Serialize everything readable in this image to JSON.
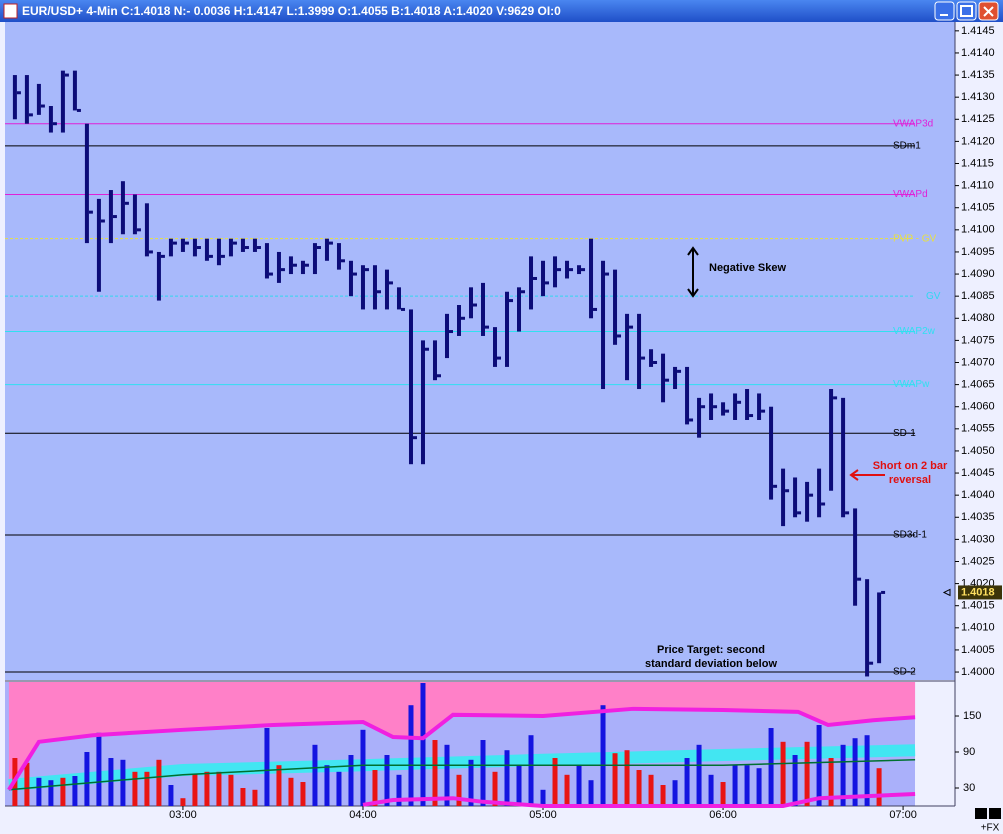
{
  "window": {
    "title": "EUR/USD+ 4-Min C:1.4018 N:- 0.0036 H:1.4147 L:1.3999 O:1.4055 B:1.4018 A:1.4020 V:9629 OI:0",
    "corner_label": "+FX"
  },
  "chart_data": [
    {
      "type": "ohlc",
      "color": "#0c0c78",
      "x": [
        124,
        128,
        132,
        136,
        140,
        144,
        148,
        152,
        156,
        160,
        164,
        168,
        172,
        176,
        180,
        184,
        188,
        192,
        196,
        200,
        204,
        208,
        212,
        216,
        220,
        224,
        228,
        232,
        236,
        240,
        244,
        248,
        252,
        256,
        260,
        264,
        268,
        272,
        276,
        280,
        284,
        288,
        292,
        296,
        300,
        304,
        308,
        312,
        316,
        320,
        324,
        328,
        332,
        336,
        340,
        344,
        348,
        352,
        356,
        360,
        364,
        368,
        372,
        376,
        380,
        384,
        388,
        392,
        396,
        400,
        404,
        408,
        412
      ],
      "high": [
        1.4135,
        1.4135,
        1.4133,
        1.4128,
        1.4136,
        1.4136,
        1.4124,
        1.4107,
        1.4109,
        1.4111,
        1.4108,
        1.4106,
        1.4095,
        1.4098,
        1.4098,
        1.4098,
        1.4098,
        1.4098,
        1.4098,
        1.4098,
        1.4098,
        1.4097,
        1.4095,
        1.4094,
        1.4093,
        1.4097,
        1.4098,
        1.4097,
        1.4093,
        1.4092,
        1.4092,
        1.4091,
        1.4087,
        1.4082,
        1.4075,
        1.4075,
        1.4081,
        1.4083,
        1.4087,
        1.4088,
        1.4078,
        1.4086,
        1.4087,
        1.4094,
        1.4093,
        1.4094,
        1.4093,
        1.4092,
        1.4098,
        1.4093,
        1.4091,
        1.4081,
        1.4081,
        1.4073,
        1.4072,
        1.4069,
        1.4069,
        1.4062,
        1.4063,
        1.4061,
        1.4063,
        1.4064,
        1.4063,
        1.406,
        1.4046,
        1.4044,
        1.4043,
        1.4046,
        1.4064,
        1.4062,
        1.4037,
        1.4021,
        1.4018
      ],
      "low": [
        1.4125,
        1.4124,
        1.4126,
        1.4122,
        1.4122,
        1.4127,
        1.4097,
        1.4086,
        1.4097,
        1.4099,
        1.4099,
        1.4094,
        1.4084,
        1.4094,
        1.4095,
        1.4094,
        1.4093,
        1.4092,
        1.4094,
        1.4095,
        1.4095,
        1.4089,
        1.4088,
        1.409,
        1.409,
        1.409,
        1.4093,
        1.4091,
        1.4085,
        1.4082,
        1.4082,
        1.4082,
        1.4082,
        1.4047,
        1.4047,
        1.4066,
        1.4071,
        1.4076,
        1.408,
        1.4076,
        1.4069,
        1.4069,
        1.4077,
        1.4082,
        1.4085,
        1.4087,
        1.4089,
        1.409,
        1.408,
        1.4064,
        1.4074,
        1.4066,
        1.4064,
        1.4069,
        1.4061,
        1.4064,
        1.4056,
        1.4053,
        1.4057,
        1.4058,
        1.4057,
        1.4057,
        1.4057,
        1.4039,
        1.4033,
        1.4035,
        1.4034,
        1.4035,
        1.4041,
        1.4035,
        1.4015,
        1.3999,
        1.4002
      ],
      "close": [
        1.4131,
        1.4126,
        1.4128,
        1.4124,
        1.4135,
        1.4127,
        1.4104,
        1.4102,
        1.4103,
        1.4106,
        1.41,
        1.4095,
        1.4094,
        1.4097,
        1.4097,
        1.4096,
        1.4094,
        1.4094,
        1.4097,
        1.4096,
        1.4096,
        1.409,
        1.4091,
        1.4092,
        1.4092,
        1.4096,
        1.4097,
        1.4093,
        1.409,
        1.4091,
        1.4086,
        1.4088,
        1.4082,
        1.4053,
        1.4073,
        1.4067,
        1.4077,
        1.408,
        1.4083,
        1.4078,
        1.4071,
        1.4084,
        1.4086,
        1.4089,
        1.4088,
        1.4091,
        1.4091,
        1.4091,
        1.4082,
        1.409,
        1.4076,
        1.4078,
        1.4071,
        1.407,
        1.4066,
        1.4068,
        1.4057,
        1.406,
        1.406,
        1.4059,
        1.4061,
        1.4058,
        1.4059,
        1.4042,
        1.4041,
        1.4036,
        1.404,
        1.4038,
        1.4062,
        1.4036,
        1.4021,
        1.4002,
        1.4018
      ],
      "xlim": [
        120.7,
        437.3
      ],
      "xticks": [
        {
          "value": 180,
          "label": "03:00"
        },
        {
          "value": 240,
          "label": "04:00"
        },
        {
          "value": 300,
          "label": "05:00"
        },
        {
          "value": 360,
          "label": "06:00"
        },
        {
          "value": 420,
          "label": "07:00"
        }
      ],
      "ylim": [
        1.39982,
        1.4147
      ],
      "yticks": [
        {
          "value": 1.4,
          "label": "1.4000"
        },
        1.4005,
        {
          "value": 1.401,
          "label": "1.4010"
        },
        1.4015,
        {
          "value": 1.402,
          "label": "1.4020"
        },
        1.4025,
        {
          "value": 1.403,
          "label": "1.4030"
        },
        1.4035,
        {
          "value": 1.404,
          "label": "1.4040"
        },
        1.4045,
        {
          "value": 1.405,
          "label": "1.4050"
        },
        1.4055,
        {
          "value": 1.406,
          "label": "1.4060"
        },
        1.4065,
        {
          "value": 1.407,
          "label": "1.4070"
        },
        1.4075,
        {
          "value": 1.408,
          "label": "1.4080"
        },
        1.4085,
        {
          "value": 1.409,
          "label": "1.4090"
        },
        1.4095,
        {
          "value": 1.41,
          "label": "1.4100"
        },
        1.4105,
        {
          "value": 1.411,
          "label": "1.4110"
        },
        1.4115,
        {
          "value": 1.412,
          "label": "1.4120"
        },
        1.4125,
        {
          "value": 1.413,
          "label": "1.4130"
        },
        1.4135,
        {
          "value": 1.414,
          "label": "1.4140"
        },
        1.4145
      ],
      "last_price": 1.4018,
      "levels": [
        {
          "label": "VWAP3d",
          "value": 1.4124,
          "color": "#e020d8",
          "dashed": false
        },
        {
          "label": "SDm1",
          "value": 1.4119,
          "color": "#000000",
          "dashed": false
        },
        {
          "label": "VWAPd",
          "value": 1.4108,
          "color": "#e020d8",
          "dashed": false
        },
        {
          "label": "PVP - GV",
          "value": 1.4098,
          "color": "#e8e040",
          "dashed": true
        },
        {
          "label": "GV",
          "value": 1.4085,
          "color": "#30d8f0",
          "dashed": true
        },
        {
          "label": "VWAP2w",
          "value": 1.4077,
          "color": "#30e0f0",
          "dashed": false
        },
        {
          "label": "VWAPw",
          "value": 1.4065,
          "color": "#30e0f0",
          "dashed": false
        },
        {
          "label": "SD-1",
          "value": 1.4054,
          "color": "#000000",
          "dashed": false
        },
        {
          "label": "SD3d-1",
          "value": 1.4031,
          "color": "#000000",
          "dashed": false
        },
        {
          "label": "SD-2",
          "value": 1.4,
          "color": "#000000",
          "dashed": false
        }
      ],
      "annotations": [
        {
          "lines": [
            "Negative Skew"
          ],
          "color": "#000000"
        },
        {
          "lines": [
            "Short on 2 bar",
            "reversal"
          ],
          "color": "#e01010"
        },
        {
          "lines": [
            "Price Target: second",
            "standard deviation below"
          ],
          "color": "#000000"
        }
      ]
    },
    {
      "type": "bar",
      "x": [
        124,
        128,
        132,
        136,
        140,
        144,
        148,
        152,
        156,
        160,
        164,
        168,
        172,
        176,
        180,
        184,
        188,
        192,
        196,
        200,
        204,
        208,
        212,
        216,
        220,
        224,
        228,
        232,
        236,
        240,
        244,
        248,
        252,
        256,
        260,
        264,
        268,
        272,
        276,
        280,
        284,
        288,
        292,
        296,
        300,
        304,
        308,
        312,
        316,
        320,
        324,
        328,
        332,
        336,
        340,
        344,
        348,
        352,
        356,
        360,
        364,
        368,
        372,
        376,
        380,
        384,
        388,
        392,
        396,
        400,
        404,
        408,
        412
      ],
      "values": [
        80,
        72,
        47,
        43,
        47,
        50,
        90,
        122,
        80,
        77,
        57,
        57,
        77,
        35,
        13,
        53,
        57,
        57,
        52,
        30,
        27,
        130,
        68,
        47,
        40,
        102,
        68,
        57,
        85,
        127,
        60,
        85,
        52,
        168,
        205,
        110,
        102,
        52,
        77,
        110,
        57,
        93,
        68,
        118,
        27,
        80,
        52,
        68,
        43,
        168,
        88,
        93,
        60,
        52,
        35,
        43,
        80,
        102,
        52,
        40,
        68,
        68,
        63,
        130,
        107,
        85,
        107,
        135,
        80,
        102,
        113,
        118,
        63
      ],
      "colors": [
        "#e81414",
        "#e81414",
        "#1414e0",
        "#1414e0",
        "#e81414",
        "#1414e0",
        "#1414e0",
        "#1414e0",
        "#1414e0",
        "#1414e0",
        "#e81414",
        "#e81414",
        "#e81414",
        "#1414e0",
        "#e81414",
        "#e81414",
        "#e81414",
        "#e81414",
        "#e81414",
        "#e81414",
        "#e81414",
        "#1414e0",
        "#e81414",
        "#e81414",
        "#e81414",
        "#1414e0",
        "#1414e0",
        "#1414e0",
        "#1414e0",
        "#1414e0",
        "#e81414",
        "#1414e0",
        "#1414e0",
        "#1414e0",
        "#1414e0",
        "#e81414",
        "#1414e0",
        "#e81414",
        "#1414e0",
        "#1414e0",
        "#e81414",
        "#1414e0",
        "#1414e0",
        "#1414e0",
        "#1414e0",
        "#e81414",
        "#e81414",
        "#1414e0",
        "#1414e0",
        "#1414e0",
        "#e81414",
        "#e81414",
        "#e81414",
        "#e81414",
        "#e81414",
        "#1414e0",
        "#1414e0",
        "#1414e0",
        "#1414e0",
        "#e81414",
        "#1414e0",
        "#1414e0",
        "#1414e0",
        "#1414e0",
        "#e81414",
        "#1414e0",
        "#e81414",
        "#1414e0",
        "#e81414",
        "#1414e0",
        "#1414e0",
        "#1414e0",
        "#e81414"
      ],
      "ylim": [
        0,
        206.7
      ],
      "yticks": [
        30,
        90,
        150
      ],
      "indicators": [
        {
          "color": "#30f0f0",
          "x": [
            122,
            180,
            240,
            300,
            360,
            424
          ],
          "values": [
            35,
            60,
            68,
            77,
            85,
            93
          ]
        },
        {
          "color": "#007030",
          "x": [
            122,
            180,
            240,
            300,
            360,
            424
          ],
          "values": [
            27,
            52,
            68,
            68,
            68,
            77
          ]
        },
        {
          "color": "#f020e0",
          "x": [
            122,
            132,
            150,
            180,
            210,
            240,
            250,
            260,
            270,
            300,
            330,
            360,
            385,
            395,
            410,
            424
          ],
          "values": [
            27,
            107,
            118,
            127,
            135,
            140,
            115,
            113,
            152,
            150,
            162,
            160,
            157,
            135,
            143,
            148
          ]
        },
        {
          "color": "#f020e0",
          "x": [
            240,
            250,
            270,
            280,
            300,
            380,
            392,
            424
          ],
          "values": [
            2,
            10,
            13,
            7,
            0,
            0,
            13,
            20
          ]
        }
      ]
    }
  ]
}
